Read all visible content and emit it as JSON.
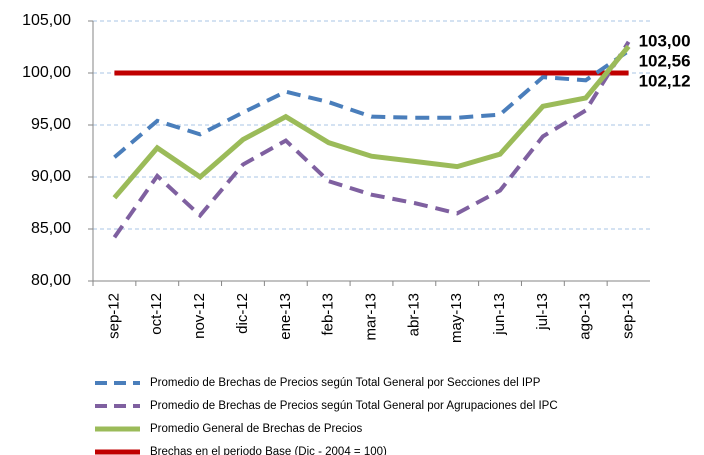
{
  "chart_data": {
    "type": "line",
    "categories": [
      "sep-12",
      "oct-12",
      "nov-12",
      "dic-12",
      "ene-13",
      "feb-13",
      "mar-13",
      "abr-13",
      "may-13",
      "jun-13",
      "jul-13",
      "ago-13",
      "sep-13"
    ],
    "series": [
      {
        "name": "Promedio de Brechas de Precios según Total General por Secciones del IPP",
        "color": "#4a7ebb",
        "dashed": true,
        "label_color": "#376092",
        "values": [
          91.9,
          95.4,
          94.1,
          96.2,
          98.2,
          97.2,
          95.8,
          95.7,
          95.7,
          96.0,
          99.6,
          99.3,
          102.12
        ],
        "value_labels": [
          null,
          null,
          null,
          null,
          null,
          null,
          null,
          null,
          null,
          null,
          null,
          null,
          "102,12"
        ]
      },
      {
        "name": "Promedio de Brechas de Precios según Total General por Agrupaciones del IPC",
        "color": "#7f60a0",
        "dashed": true,
        "label_color": "#604a7b",
        "values": [
          84.2,
          90.1,
          86.3,
          91.2,
          93.5,
          89.6,
          88.3,
          87.5,
          86.5,
          88.7,
          93.9,
          96.4,
          103.0
        ],
        "value_labels": [
          null,
          null,
          null,
          null,
          null,
          null,
          null,
          null,
          null,
          null,
          null,
          null,
          "103,00"
        ]
      },
      {
        "name": "Promedio General de Brechas de Precios",
        "color": "#9bbb59",
        "dashed": false,
        "label_color": "#8a8a00",
        "values": [
          88.0,
          92.8,
          90.0,
          93.6,
          95.8,
          93.3,
          92.0,
          91.5,
          91.0,
          92.2,
          96.8,
          97.6,
          102.56
        ],
        "value_labels": [
          null,
          null,
          null,
          null,
          null,
          null,
          null,
          null,
          null,
          null,
          null,
          null,
          "102,56"
        ]
      },
      {
        "name": "Brechas en el periodo Base (Dic - 2004 = 100)",
        "color": "#c00000",
        "dashed": false,
        "values": [
          100,
          100,
          100,
          100,
          100,
          100,
          100,
          100,
          100,
          100,
          100,
          100,
          100
        ]
      }
    ],
    "ylim": [
      80,
      105
    ],
    "yticks": [
      {
        "value": 80,
        "label": "80,00"
      },
      {
        "value": 85,
        "label": "85,00"
      },
      {
        "value": 90,
        "label": "90,00"
      },
      {
        "value": 95,
        "label": "95,00"
      },
      {
        "value": 100,
        "label": "100,00"
      },
      {
        "value": 105,
        "label": "105,00"
      }
    ],
    "grid": true
  }
}
